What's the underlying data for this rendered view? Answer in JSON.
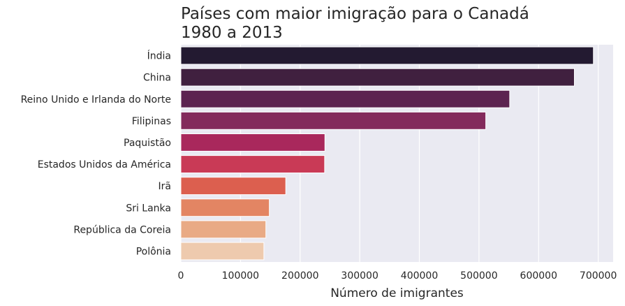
{
  "chart_data": {
    "type": "bar",
    "orientation": "horizontal",
    "title": [
      "Países com maior imigração para o Canadá",
      "1980 a 2013"
    ],
    "xlabel": "Número de imigrantes",
    "ylabel": "",
    "xlim": [
      0,
      725000
    ],
    "xticks": [
      0,
      100000,
      200000,
      300000,
      400000,
      500000,
      600000,
      700000
    ],
    "grid": true,
    "categories": [
      "Índia",
      "China",
      "Reino Unido e Irlanda do Norte",
      "Filipinas",
      "Paquistão",
      "Estados Unidos da América",
      "Irã",
      "Sri Lanka",
      "República da Coreia",
      "Polônia"
    ],
    "values": [
      691904,
      659962,
      551500,
      511391,
      241600,
      241122,
      175923,
      148358,
      142581,
      139241
    ],
    "colors": [
      "#231a31",
      "#40203f",
      "#5c2350",
      "#832a5c",
      "#a9285c",
      "#c93a56",
      "#dc5f4f",
      "#e38563",
      "#e9aa85",
      "#eecaae"
    ],
    "background": "#eaeaf2"
  }
}
